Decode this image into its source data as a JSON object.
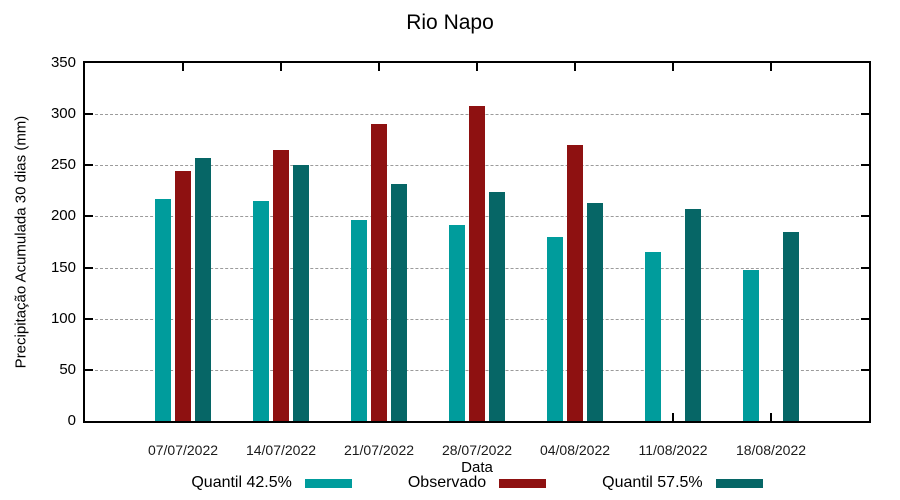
{
  "chart_data": {
    "type": "bar",
    "title": "Rio Napo",
    "xlabel": "Data",
    "ylabel": "Precipitação Acumulada 30 dias (mm)",
    "categories": [
      "07/07/2022",
      "14/07/2022",
      "21/07/2022",
      "28/07/2022",
      "04/08/2022",
      "11/08/2022",
      "18/08/2022"
    ],
    "series": [
      {
        "name": "Quantil 42.5%",
        "color": "#009C9C",
        "values": [
          217,
          215,
          197,
          192,
          180,
          165,
          148
        ]
      },
      {
        "name": "Observado",
        "color": "#8E1111",
        "values": [
          244,
          265,
          290,
          308,
          270,
          null,
          null
        ]
      },
      {
        "name": "Quantil 57.5%",
        "color": "#066666",
        "values": [
          257,
          250,
          232,
          224,
          213,
          207,
          185
        ]
      }
    ],
    "ylim": [
      0,
      350
    ],
    "ytick_step": 50,
    "grid": "horizontal-dashed",
    "legend_position": "bottom",
    "axis_color": "#000000",
    "grid_color": "#9b9b9b"
  }
}
